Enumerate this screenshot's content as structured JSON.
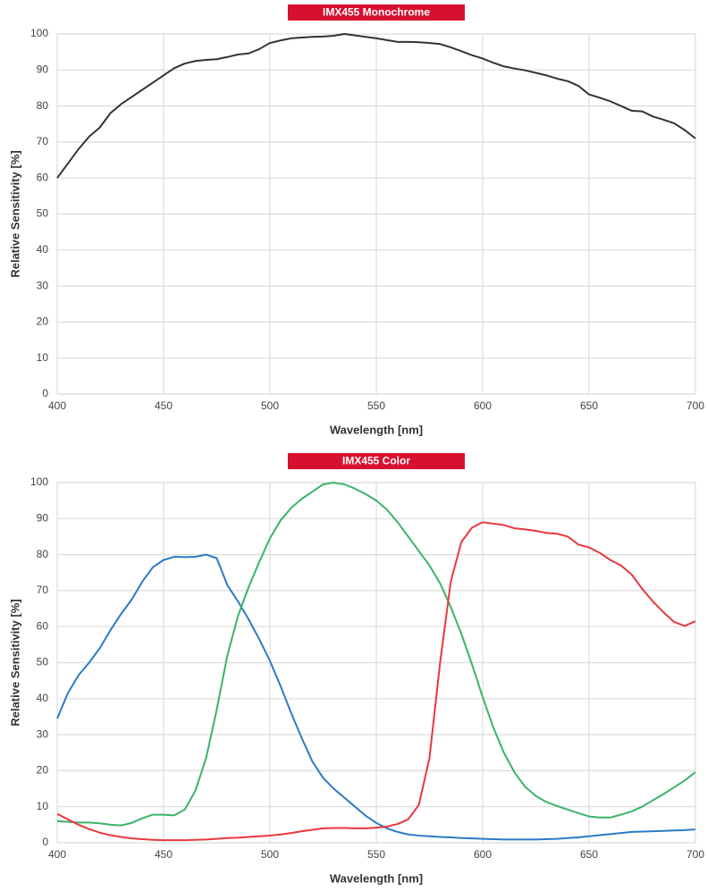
{
  "chart_data": [
    {
      "type": "line",
      "title": "IMX455 Monochrome",
      "xlabel": "Wavelength [nm]",
      "ylabel": "Relative Sensitivity [%]",
      "xlim": [
        400,
        700
      ],
      "xticks": [
        400,
        450,
        500,
        550,
        600,
        650,
        700
      ],
      "ylim": [
        0,
        100
      ],
      "yticks": [
        0,
        10,
        20,
        30,
        40,
        50,
        60,
        70,
        80,
        90,
        100
      ],
      "grid": true,
      "x": [
        400,
        405,
        410,
        415,
        420,
        425,
        430,
        435,
        440,
        445,
        450,
        455,
        460,
        465,
        470,
        475,
        480,
        485,
        490,
        495,
        500,
        505,
        510,
        515,
        520,
        525,
        530,
        535,
        540,
        545,
        550,
        555,
        560,
        565,
        570,
        575,
        580,
        585,
        590,
        595,
        600,
        605,
        610,
        615,
        620,
        625,
        630,
        635,
        640,
        645,
        650,
        655,
        660,
        665,
        670,
        675,
        680,
        685,
        690,
        695,
        700
      ],
      "series": [
        {
          "name": "Monochrome",
          "color": "#333333",
          "values": [
            60,
            64,
            68,
            71.5,
            74,
            78,
            80.5,
            82.5,
            84.5,
            86.5,
            88.5,
            90.5,
            91.8,
            92.5,
            92.8,
            93,
            93.6,
            94.3,
            94.6,
            95.8,
            97.5,
            98.2,
            98.8,
            99,
            99.2,
            99.3,
            99.5,
            100,
            99.6,
            99.2,
            98.8,
            98.3,
            97.8,
            97.8,
            97.7,
            97.5,
            97.2,
            96.3,
            95.2,
            94.1,
            93.2,
            92,
            91,
            90.4,
            89.9,
            89.2,
            88.5,
            87.6,
            86.9,
            85.6,
            83.2,
            82.3,
            81.3,
            80,
            78.7,
            78.5,
            77.1,
            76.2,
            75.2,
            73.3,
            71
          ]
        }
      ]
    },
    {
      "type": "line",
      "title": "IMX455 Color",
      "xlabel": "Wavelength [nm]",
      "ylabel": "Relative Sensitivity [%]",
      "xlim": [
        400,
        700
      ],
      "xticks": [
        400,
        450,
        500,
        550,
        600,
        650,
        700
      ],
      "ylim": [
        0,
        100
      ],
      "yticks": [
        0,
        10,
        20,
        30,
        40,
        50,
        60,
        70,
        80,
        90,
        100
      ],
      "grid": true,
      "x": [
        400,
        405,
        410,
        415,
        420,
        425,
        430,
        435,
        440,
        445,
        450,
        455,
        460,
        465,
        470,
        475,
        480,
        485,
        490,
        495,
        500,
        505,
        510,
        515,
        520,
        525,
        530,
        535,
        540,
        545,
        550,
        555,
        560,
        565,
        570,
        575,
        580,
        585,
        590,
        595,
        600,
        605,
        610,
        615,
        620,
        625,
        630,
        635,
        640,
        645,
        650,
        655,
        660,
        665,
        670,
        675,
        680,
        685,
        690,
        695,
        700
      ],
      "series": [
        {
          "name": "Blue",
          "color": "#2b7bc4",
          "values": [
            34.5,
            41.5,
            46.5,
            50,
            54,
            59,
            63.5,
            67.5,
            72.5,
            76.5,
            78.5,
            79.4,
            79.3,
            79.4,
            80,
            79,
            71.5,
            67,
            62,
            56.5,
            50.5,
            43.5,
            36,
            29,
            22.5,
            18,
            15,
            12.5,
            10,
            7.5,
            5.5,
            4,
            3,
            2.3,
            2,
            1.8,
            1.6,
            1.5,
            1.3,
            1.2,
            1.1,
            1,
            0.9,
            0.9,
            0.9,
            0.9,
            1,
            1.1,
            1.3,
            1.5,
            1.8,
            2.1,
            2.4,
            2.7,
            3,
            3.1,
            3.2,
            3.3,
            3.4,
            3.5,
            3.7
          ]
        },
        {
          "name": "Green",
          "color": "#3bb36a",
          "values": [
            6,
            5.8,
            5.6,
            5.6,
            5.4,
            5,
            4.8,
            5.5,
            6.8,
            7.8,
            7.8,
            7.6,
            9.2,
            14.5,
            23.5,
            37,
            52,
            63,
            71,
            78,
            84.5,
            89.5,
            93,
            95.5,
            97.5,
            99.5,
            100,
            99.5,
            98.3,
            96.8,
            95,
            92.5,
            89,
            85,
            81,
            77,
            72,
            65.5,
            58,
            49.5,
            40.5,
            32,
            25,
            19.5,
            15.5,
            13,
            11.3,
            10.2,
            9.2,
            8.2,
            7.3,
            7,
            7,
            7.8,
            8.7,
            10,
            11.8,
            13.5,
            15.4,
            17.3,
            19.6
          ]
        },
        {
          "name": "Red",
          "color": "#e8383d",
          "values": [
            8,
            6.5,
            5,
            3.8,
            2.8,
            2.1,
            1.6,
            1.2,
            1,
            0.8,
            0.7,
            0.7,
            0.7,
            0.8,
            0.9,
            1.1,
            1.3,
            1.4,
            1.6,
            1.8,
            2,
            2.3,
            2.7,
            3.2,
            3.6,
            4,
            4.1,
            4.1,
            4,
            4,
            4.2,
            4.5,
            5.2,
            6.5,
            10.5,
            23.5,
            50,
            72.5,
            83.5,
            87.5,
            89,
            88.6,
            88.2,
            87.3,
            87,
            86.6,
            86,
            85.8,
            85,
            82.8,
            82,
            80.5,
            78.5,
            77,
            74.5,
            70.5,
            67,
            64,
            61.3,
            60.2,
            61.5
          ]
        }
      ]
    }
  ]
}
